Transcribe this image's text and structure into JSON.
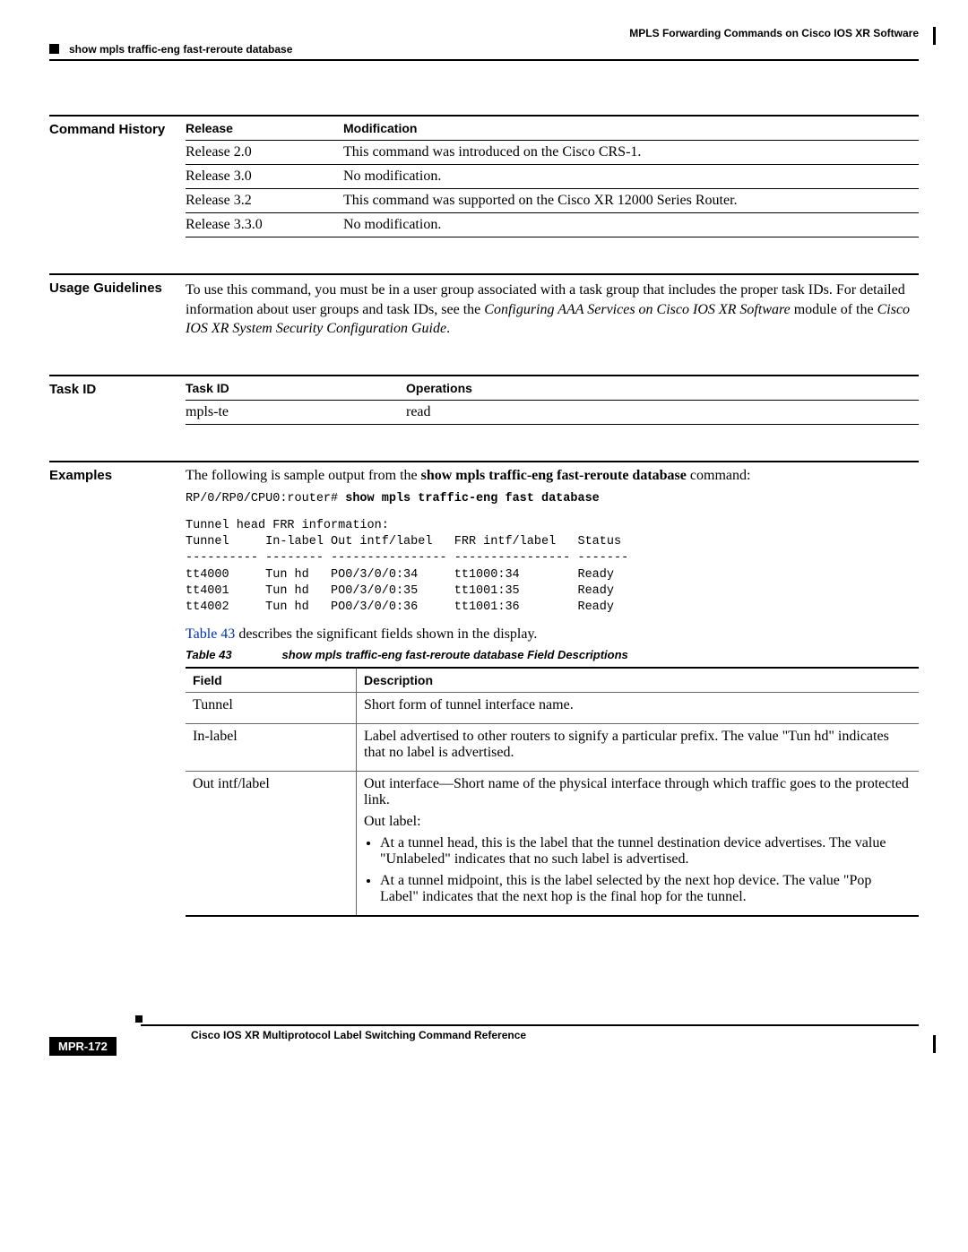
{
  "header_right": "MPLS Forwarding Commands on Cisco IOS XR Software",
  "header_left": "show mpls traffic-eng fast-reroute database",
  "sections": {
    "command_history": {
      "label": "Command History",
      "col1": "Release",
      "col2": "Modification",
      "rows": [
        {
          "release": "Release 2.0",
          "mod": "This command was introduced on the Cisco CRS-1."
        },
        {
          "release": "Release 3.0",
          "mod": "No modification."
        },
        {
          "release": "Release 3.2",
          "mod": "This command was supported on the Cisco XR 12000 Series Router."
        },
        {
          "release": "Release 3.3.0",
          "mod": "No modification."
        }
      ]
    },
    "usage": {
      "label": "Usage Guidelines",
      "text_pre": "To use this command, you must be in a user group associated with a task group that includes the proper task IDs. For detailed information about user groups and task IDs, see the ",
      "em1": "Configuring AAA Services on Cisco IOS XR Software",
      "text_mid": " module of the ",
      "em2": "Cisco IOS XR System Security Configuration Guide",
      "text_post": "."
    },
    "task_id": {
      "label": "Task ID",
      "col1": "Task ID",
      "col2": "Operations",
      "rows": [
        {
          "task": "mpls-te",
          "ops": "read"
        }
      ]
    },
    "examples": {
      "label": "Examples",
      "intro_pre": "The following is sample output from the ",
      "intro_bold": "show mpls traffic-eng fast-reroute database",
      "intro_post": " command:",
      "prompt": "RP/0/RP0/CPU0:router# ",
      "cmd": "show mpls traffic-eng fast database",
      "output": "Tunnel head FRR information:\nTunnel     In-label Out intf/label   FRR intf/label   Status\n---------- -------- ---------------- ---------------- -------\ntt4000     Tun hd   PO0/3/0/0:34     tt1000:34        Ready\ntt4001     Tun hd   PO0/3/0/0:35     tt1001:35        Ready\ntt4002     Tun hd   PO0/3/0/0:36     tt1001:36        Ready",
      "table_ref_link": "Table 43",
      "table_ref_rest": " describes the significant fields shown in the display.",
      "table_label": "Table 43",
      "table_title": "show mpls traffic-eng fast-reroute database Field Descriptions",
      "col_field": "Field",
      "col_desc": "Description",
      "rows": [
        {
          "field": "Tunnel",
          "desc_paras": [
            "Short form of tunnel interface name."
          ],
          "bullets": []
        },
        {
          "field": "In-label",
          "desc_paras": [
            "Label advertised to other routers to signify a particular prefix. The value \"Tun hd\" indicates that no label is advertised."
          ],
          "bullets": []
        },
        {
          "field": "Out intf/label",
          "desc_paras": [
            "Out interface—Short name of the physical interface through which traffic goes to the protected link.",
            "Out label:"
          ],
          "bullets": [
            "At a tunnel head, this is the label that the tunnel destination device advertises. The value \"Unlabeled\" indicates that no such label is advertised.",
            "At a tunnel midpoint, this is the label selected by the next hop device. The value \"Pop Label\" indicates that the next hop is the final hop for the tunnel."
          ]
        }
      ]
    }
  },
  "footer": {
    "title": "Cisco IOS XR Multiprotocol Label Switching Command Reference",
    "page": "MPR-172"
  }
}
